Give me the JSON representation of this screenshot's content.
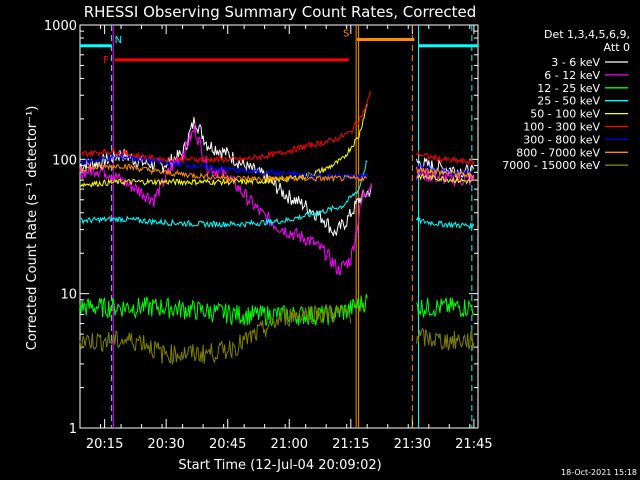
{
  "chart_data": {
    "type": "line",
    "title": "RHESSI Observing Summary Count Rates, Corrected",
    "xlabel": "Start Time (12-Jul-04 20:09:02)",
    "ylabel": "Corrected Count Rate (s⁻¹ detector⁻¹)",
    "ylog": true,
    "ylim": [
      1,
      1000
    ],
    "xlim_minutes": [
      0,
      97
    ],
    "x_ticks": [
      {
        "label": "20:15",
        "t": 6
      },
      {
        "label": "20:30",
        "t": 21
      },
      {
        "label": "20:45",
        "t": 36
      },
      {
        "label": "21:00",
        "t": 51
      },
      {
        "label": "21:15",
        "t": 66
      },
      {
        "label": "21:30",
        "t": 81
      },
      {
        "label": "21:45",
        "t": 96
      }
    ],
    "y_ticks": [
      {
        "label": "1",
        "v": 1
      },
      {
        "label": "10",
        "v": 10
      },
      {
        "label": "100",
        "v": 100
      },
      {
        "label": "1000",
        "v": 1000
      }
    ],
    "legend_header": [
      "Det 1,3,4,5,6,9,",
      "Att 0"
    ],
    "legend_position": "right",
    "series": [
      {
        "name": "3 - 6 keV",
        "color": "#ffffff",
        "seg1": [
          [
            0,
            90
          ],
          [
            5,
            95
          ],
          [
            10,
            110
          ],
          [
            15,
            95
          ],
          [
            20,
            90
          ],
          [
            25,
            110
          ],
          [
            28,
            200
          ],
          [
            31,
            130
          ],
          [
            36,
            110
          ],
          [
            40,
            90
          ],
          [
            45,
            75
          ],
          [
            50,
            55
          ],
          [
            55,
            45
          ],
          [
            60,
            35
          ],
          [
            62,
            28
          ],
          [
            65,
            35
          ],
          [
            68,
            50
          ],
          [
            71,
            60
          ]
        ],
        "seg2": [
          [
            82,
            95
          ],
          [
            85,
            90
          ],
          [
            90,
            85
          ],
          [
            96,
            80
          ]
        ]
      },
      {
        "name": "6 - 12 keV",
        "color": "#ff00ff",
        "seg1": [
          [
            0,
            80
          ],
          [
            4,
            85
          ],
          [
            7,
            80
          ],
          [
            10,
            70
          ],
          [
            14,
            60
          ],
          [
            18,
            50
          ],
          [
            22,
            85
          ],
          [
            25,
            110
          ],
          [
            28,
            170
          ],
          [
            31,
            90
          ],
          [
            36,
            75
          ],
          [
            40,
            55
          ],
          [
            44,
            40
          ],
          [
            48,
            32
          ],
          [
            52,
            28
          ],
          [
            56,
            25
          ],
          [
            60,
            20
          ],
          [
            63,
            15
          ],
          [
            66,
            18
          ],
          [
            69,
            55
          ],
          [
            71,
            65
          ]
        ],
        "seg2": [
          [
            82,
            80
          ],
          [
            86,
            75
          ],
          [
            90,
            72
          ],
          [
            96,
            70
          ]
        ]
      },
      {
        "name": "12 - 25 keV",
        "color": "#00ff00",
        "seg1": [
          [
            0,
            8
          ],
          [
            10,
            8
          ],
          [
            20,
            8
          ],
          [
            30,
            7.5
          ],
          [
            40,
            7
          ],
          [
            50,
            7
          ],
          [
            60,
            7
          ],
          [
            65,
            7.5
          ],
          [
            70,
            9
          ]
        ],
        "seg2": [
          [
            82,
            8
          ],
          [
            88,
            8
          ],
          [
            96,
            8
          ]
        ]
      },
      {
        "name": "25 - 50 keV",
        "color": "#00ffff",
        "seg1": [
          [
            0,
            35
          ],
          [
            10,
            36
          ],
          [
            20,
            34
          ],
          [
            30,
            33
          ],
          [
            40,
            33
          ],
          [
            50,
            35
          ],
          [
            58,
            40
          ],
          [
            64,
            45
          ],
          [
            68,
            60
          ],
          [
            70,
            100
          ]
        ],
        "seg2": [
          [
            82,
            35
          ],
          [
            88,
            33
          ],
          [
            96,
            32
          ]
        ]
      },
      {
        "name": "50 - 100 keV",
        "color": "#ffff00",
        "seg1": [
          [
            0,
            65
          ],
          [
            10,
            68
          ],
          [
            20,
            68
          ],
          [
            30,
            68
          ],
          [
            40,
            68
          ],
          [
            48,
            70
          ],
          [
            55,
            75
          ],
          [
            60,
            85
          ],
          [
            64,
            100
          ],
          [
            68,
            150
          ],
          [
            70,
            260
          ]
        ],
        "seg2": [
          [
            82,
            75
          ],
          [
            88,
            72
          ],
          [
            96,
            68
          ]
        ]
      },
      {
        "name": "100 - 300 keV",
        "color": "#ff0000",
        "seg1": [
          [
            0,
            110
          ],
          [
            8,
            115
          ],
          [
            15,
            105
          ],
          [
            20,
            100
          ],
          [
            30,
            100
          ],
          [
            40,
            100
          ],
          [
            48,
            110
          ],
          [
            55,
            125
          ],
          [
            62,
            140
          ],
          [
            66,
            160
          ],
          [
            69,
            220
          ],
          [
            71,
            320
          ]
        ],
        "seg2": [
          [
            82,
            110
          ],
          [
            88,
            100
          ],
          [
            96,
            95
          ]
        ]
      },
      {
        "name": "300 - 800 keV",
        "color": "#0000ff",
        "seg1": [
          [
            0,
            95
          ],
          [
            10,
            105
          ],
          [
            20,
            95
          ],
          [
            30,
            88
          ],
          [
            40,
            82
          ],
          [
            50,
            78
          ],
          [
            60,
            75
          ],
          [
            70,
            75
          ]
        ],
        "seg2": [
          [
            82,
            90
          ],
          [
            88,
            82
          ],
          [
            96,
            78
          ]
        ]
      },
      {
        "name": "800 - 7000 keV",
        "color": "#ff8c00",
        "seg1": [
          [
            0,
            85
          ],
          [
            10,
            90
          ],
          [
            20,
            80
          ],
          [
            30,
            75
          ],
          [
            40,
            72
          ],
          [
            50,
            72
          ],
          [
            60,
            72
          ],
          [
            70,
            72
          ]
        ],
        "seg2": [
          [
            82,
            85
          ],
          [
            88,
            80
          ],
          [
            96,
            76
          ]
        ]
      },
      {
        "name": "7000 - 15000 keV",
        "color": "#808000",
        "seg1": [
          [
            0,
            4.5
          ],
          [
            10,
            4.5
          ],
          [
            15,
            4.5
          ],
          [
            20,
            3.6
          ],
          [
            25,
            3.6
          ],
          [
            30,
            3.6
          ],
          [
            35,
            3.8
          ],
          [
            40,
            4.4
          ],
          [
            45,
            5.5
          ],
          [
            50,
            6.8
          ],
          [
            55,
            7.2
          ],
          [
            60,
            7.2
          ],
          [
            66,
            7.2
          ]
        ],
        "seg2": [
          [
            82,
            4.8
          ],
          [
            88,
            4.5
          ],
          [
            96,
            4.5
          ]
        ]
      }
    ],
    "annotations": [
      {
        "label": "N",
        "color": "#00ffff"
      },
      {
        "label": "F",
        "color": "#ff0000"
      },
      {
        "label": "S",
        "color": "#ff8c00"
      }
    ],
    "intervals": {
      "night": {
        "color": "#00ffff",
        "t": [
          [
            0,
            7.7
          ],
          [
            82.5,
            97
          ]
        ]
      },
      "flare": {
        "color": "#ff0000",
        "t": [
          [
            8.5,
            65.5
          ]
        ]
      },
      "saa": {
        "color": "#ff8c00",
        "t": [
          [
            67.5,
            81.5
          ]
        ]
      }
    },
    "vlines": [
      {
        "t": 7.7,
        "color": "#00ffff",
        "dashed": true
      },
      {
        "t": 8.1,
        "color": "#ff00ff",
        "dashed": false
      },
      {
        "t": 67.3,
        "color": "#ff8c00",
        "dashed": false
      },
      {
        "t": 67.9,
        "color": "#ff8c00",
        "dashed": false
      },
      {
        "t": 81.0,
        "color": "#ff8c00",
        "dashed": true
      },
      {
        "t": 82.5,
        "color": "#00ffff",
        "dashed": false
      },
      {
        "t": 95.5,
        "color": "#00ffff",
        "dashed": true
      }
    ]
  },
  "footer": {
    "date": "18-Oct-2021 15:18"
  }
}
